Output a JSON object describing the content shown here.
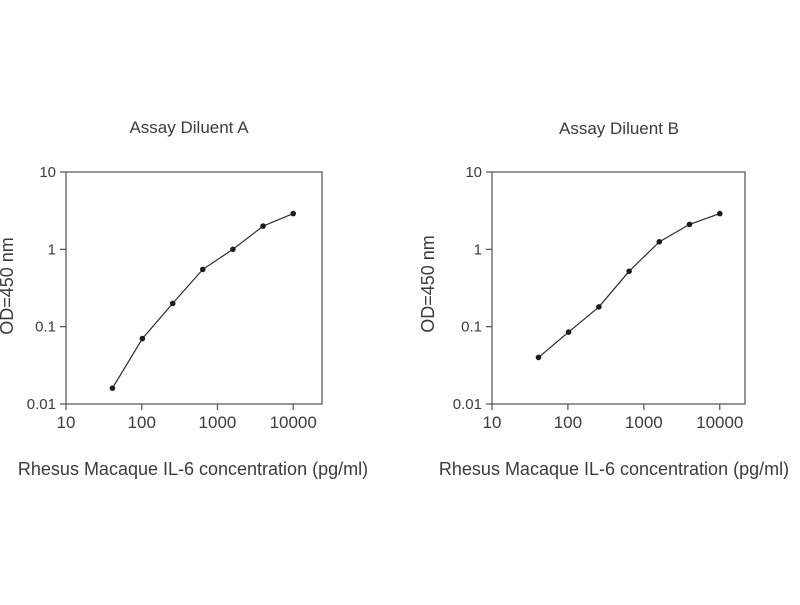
{
  "figure": {
    "description": "Two ELISA standard-curve plots side by side",
    "colors": {
      "background": "#ffffff",
      "axis": "#4f4f4f",
      "line": "#2a2a2a",
      "marker": "#1c1c1c",
      "text": "#3b3b3b"
    }
  },
  "chart_data": [
    {
      "type": "line",
      "title": "Assay Diluent A",
      "xlabel": "Rhesus  Macaque IL-6 concentration (pg/ml)",
      "ylabel": "OD=450 nm",
      "xscale": "log",
      "yscale": "log",
      "xlim": [
        10,
        24000
      ],
      "ylim": [
        0.01,
        10
      ],
      "x_ticks": [
        10,
        100,
        1000,
        10000
      ],
      "y_ticks": [
        0.01,
        0.1,
        1,
        10
      ],
      "grid": false,
      "legend": false,
      "series": [
        {
          "name": "standard-curve",
          "x": [
            41,
            102,
            256,
            640,
            1600,
            4000,
            10000
          ],
          "y": [
            0.016,
            0.07,
            0.2,
            0.55,
            1.0,
            2.0,
            2.9
          ]
        }
      ]
    },
    {
      "type": "line",
      "title": "Assay Diluent B",
      "xlabel": "Rhesus  Macaque IL-6 concentration (pg/ml)",
      "ylabel": "OD=450 nm",
      "xscale": "log",
      "yscale": "log",
      "xlim": [
        10,
        21500
      ],
      "ylim": [
        0.01,
        10
      ],
      "x_ticks": [
        10,
        100,
        1000,
        10000
      ],
      "y_ticks": [
        0.01,
        0.1,
        1,
        10
      ],
      "grid": false,
      "legend": false,
      "series": [
        {
          "name": "standard-curve",
          "x": [
            41,
            102,
            256,
            640,
            1600,
            4000,
            10000
          ],
          "y": [
            0.04,
            0.085,
            0.18,
            0.52,
            1.25,
            2.1,
            2.9
          ]
        }
      ]
    }
  ]
}
